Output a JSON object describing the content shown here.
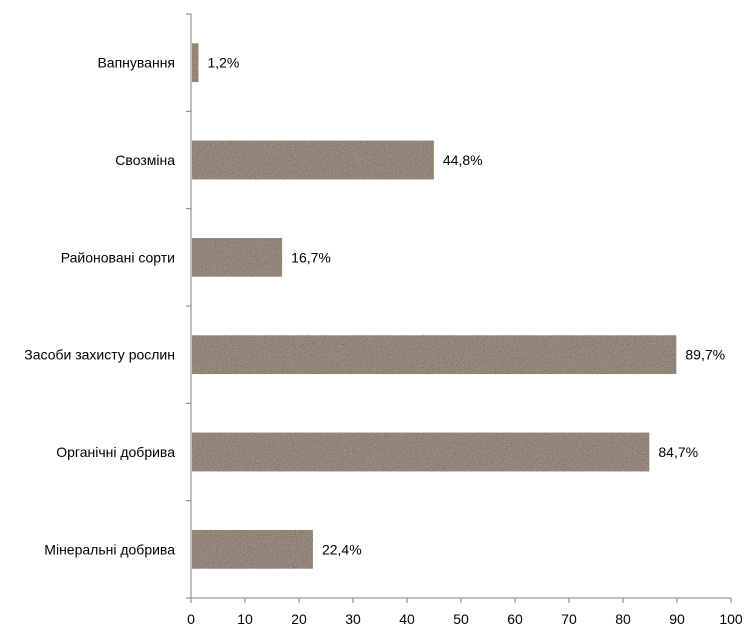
{
  "chart_data": {
    "type": "bar",
    "orientation": "horizontal",
    "categories": [
      "Вапнування",
      "Свозміна",
      "Районовані сорти",
      "Засоби захисту рослин",
      "Органічні добрива",
      "Мінеральні добрива"
    ],
    "values": [
      1.2,
      44.8,
      16.7,
      89.7,
      84.7,
      22.4
    ],
    "value_labels": [
      "1,2%",
      "44,8%",
      "16,7%",
      "89,7%",
      "84,7%",
      "22,4%"
    ],
    "xlim": [
      0,
      100
    ],
    "x_ticks": [
      0,
      10,
      20,
      30,
      40,
      50,
      60,
      70,
      80,
      90,
      100
    ],
    "grid": false,
    "bar_color": "#a8988a",
    "bar_texture": "speckled-stone"
  }
}
